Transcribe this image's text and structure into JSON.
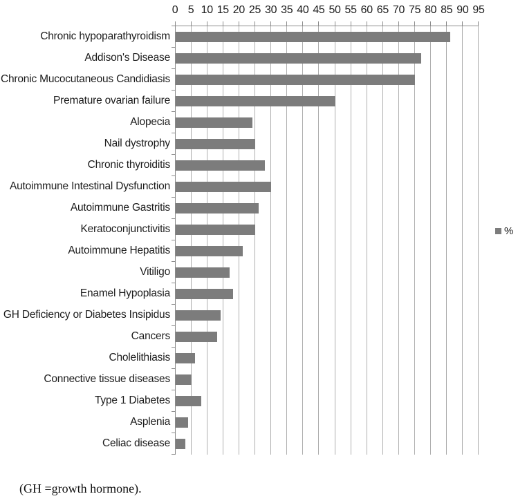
{
  "chart_data": {
    "type": "bar",
    "orientation": "horizontal",
    "title": "",
    "xlabel": "",
    "ylabel": "",
    "xlim": [
      0,
      95
    ],
    "x_ticks": [
      0,
      5,
      10,
      15,
      20,
      25,
      30,
      35,
      40,
      45,
      50,
      55,
      60,
      65,
      70,
      75,
      80,
      85,
      90,
      95
    ],
    "grid": true,
    "legend_position": "right",
    "legend_label": "%",
    "bar_color": "#7c7c7c",
    "categories": [
      "Chronic hypoparathyroidism",
      "Addison's Disease",
      "Chronic Mucocutaneous Candidiasis",
      "Premature ovarian failure",
      "Alopecia",
      "Nail dystrophy",
      "Chronic thyroiditis",
      "Autoimmune Intestinal Dysfunction",
      "Autoimmune Gastritis",
      "Keratoconjunctivitis",
      "Autoimmune Hepatitis",
      "Vitiligo",
      "Enamel Hypoplasia",
      "GH Deficiency or Diabetes Insipidus",
      "Cancers",
      "Cholelithiasis",
      "Connective tissue diseases",
      "Type 1 Diabetes",
      "Asplenia",
      "Celiac disease"
    ],
    "values": [
      86,
      77,
      75,
      50,
      24,
      25,
      28,
      30,
      26,
      25,
      21,
      17,
      18,
      14,
      13,
      6,
      5,
      8,
      4,
      3
    ]
  },
  "footnote": "(GH =growth hormone).",
  "colors": {
    "bar": "#7c7c7c",
    "gridline": "#adadad",
    "axis": "#8a8a8a",
    "text": "#1c1c1c"
  }
}
